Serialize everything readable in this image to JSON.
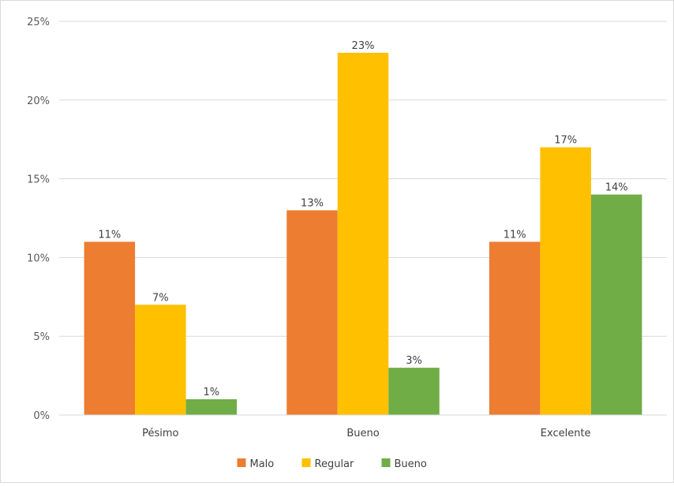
{
  "chart_data": {
    "type": "bar",
    "title": "",
    "xlabel": "",
    "ylabel": "",
    "categories": [
      "Pésimo",
      "Bueno",
      "Excelente"
    ],
    "series": [
      {
        "name": "Malo",
        "color": "#ED7D31",
        "values": [
          11,
          13,
          11
        ],
        "labels": [
          "11%",
          "13%",
          "11%"
        ]
      },
      {
        "name": "Regular",
        "color": "#FFC000",
        "values": [
          7,
          23,
          17
        ],
        "labels": [
          "7%",
          "23%",
          "17%"
        ]
      },
      {
        "name": "Bueno",
        "color": "#70AD47",
        "values": [
          1,
          3,
          14
        ],
        "labels": [
          "1%",
          "3%",
          "14%"
        ]
      }
    ],
    "ylim": [
      0,
      25
    ],
    "yticks": [
      0,
      5,
      10,
      15,
      20,
      25
    ],
    "ytick_labels": [
      "0%",
      "5%",
      "10%",
      "15%",
      "20%",
      "25%"
    ],
    "grid": true,
    "legend": "bottom"
  }
}
